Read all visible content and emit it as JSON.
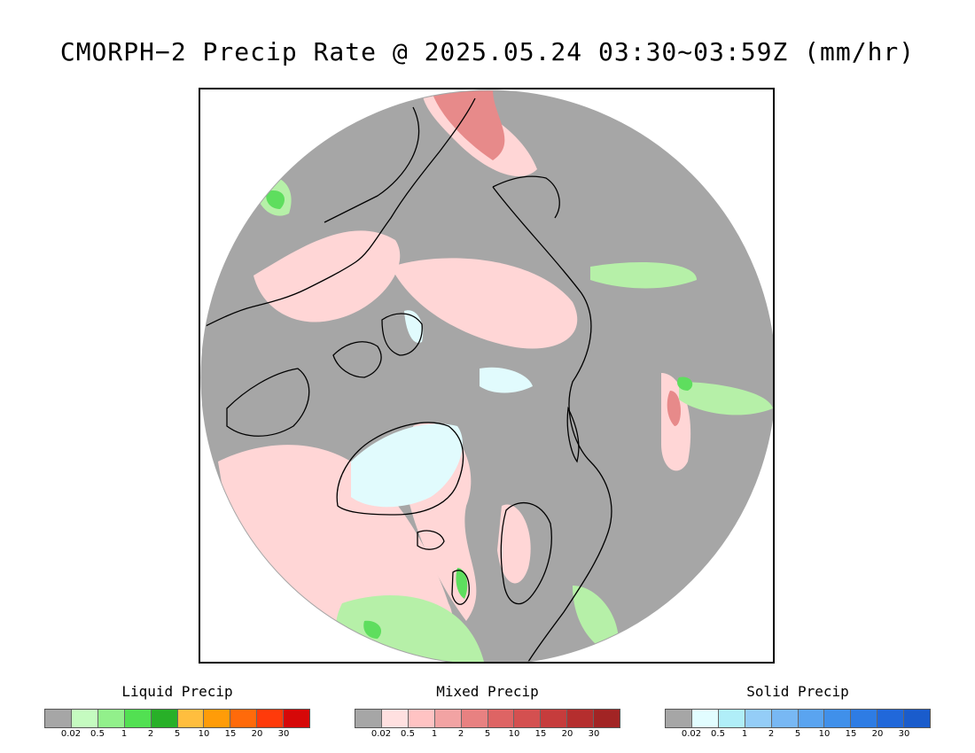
{
  "title": "CMORPH−2 Precip Rate @ 2025.05.24 03:30~03:59Z (mm/hr)",
  "map": {
    "colors": {
      "no_precip": "#a6a6a6",
      "mixed_light": "#ffd6d6",
      "mixed_moderate": "#e78a8a",
      "liquid_light": "#b6f0a8",
      "liquid_moderate": "#5ede5e",
      "solid_light": "#e1fbfd",
      "outside": "#ffffff",
      "coastline": "#000000"
    }
  },
  "legends": [
    {
      "title": "Liquid Precip",
      "colors": [
        "#a6a6a6",
        "#c5fbc0",
        "#92f08b",
        "#52e052",
        "#28b028",
        "#ffbe3e",
        "#ff9c08",
        "#ff6a0a",
        "#ff3a0a",
        "#d60808"
      ],
      "ticks": [
        "0.02",
        "0.5",
        "1",
        "2",
        "5",
        "10",
        "15",
        "20",
        "30"
      ]
    },
    {
      "title": "Mixed Precip",
      "colors": [
        "#a6a6a6",
        "#ffe0e0",
        "#ffc3c3",
        "#f2a3a3",
        "#e88181",
        "#de6464",
        "#d45050",
        "#c63c3c",
        "#b52e2e",
        "#a22424"
      ],
      "ticks": [
        "0.02",
        "0.5",
        "1",
        "2",
        "5",
        "10",
        "15",
        "20",
        "30"
      ]
    },
    {
      "title": "Solid Precip",
      "colors": [
        "#a6a6a6",
        "#e2fdff",
        "#b0eef8",
        "#94cdf7",
        "#78b8f4",
        "#5aa4f0",
        "#4090ea",
        "#2e7ce4",
        "#2168da",
        "#1a5ccc"
      ],
      "ticks": [
        "0.02",
        "0.5",
        "1",
        "2",
        "5",
        "10",
        "15",
        "20",
        "30"
      ]
    }
  ]
}
